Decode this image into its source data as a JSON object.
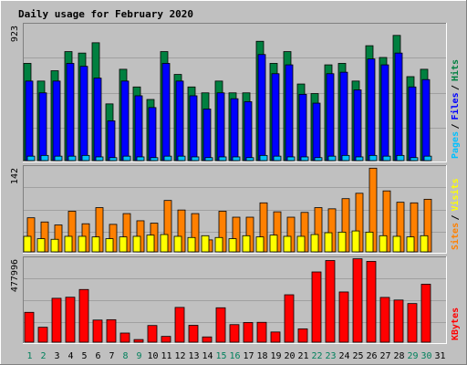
{
  "colors": {
    "frame": "#c0c0c0",
    "panel_bg": "#c0c0c0",
    "title": "#0000ff",
    "hits": "#008040",
    "files": "#0000ff",
    "pages": "#00c0ff",
    "visits": "#ffff00",
    "sites": "#ff8000",
    "kbytes": "#ff0000",
    "weekend_label": "#00805c",
    "weekday_label": "#000000"
  },
  "chart_data": [
    {
      "type": "bar",
      "title": "Daily usage for February 2020",
      "legend": [
        "Pages",
        "Files",
        "Hits"
      ],
      "legend_placement": "right-vertical",
      "ymax_label": "923",
      "ylim": [
        0,
        923
      ],
      "categories": [
        "1",
        "2",
        "3",
        "4",
        "5",
        "6",
        "7",
        "8",
        "9",
        "10",
        "11",
        "12",
        "13",
        "14",
        "15",
        "16",
        "17",
        "18",
        "19",
        "20",
        "21",
        "22",
        "23",
        "24",
        "25",
        "26",
        "27",
        "28",
        "29",
        "30",
        "31"
      ],
      "weekend_days": [
        "1",
        "2",
        "8",
        "9",
        "15",
        "16",
        "22",
        "23",
        "29",
        "30"
      ],
      "series": [
        {
          "name": "Hits",
          "values": [
            660,
            540,
            610,
            740,
            730,
            800,
            385,
            620,
            500,
            415,
            740,
            585,
            500,
            460,
            540,
            460,
            460,
            810,
            660,
            740,
            520,
            455,
            650,
            660,
            540,
            780,
            700,
            850,
            570,
            620,
            0
          ]
        },
        {
          "name": "Files",
          "values": [
            540,
            460,
            540,
            660,
            640,
            560,
            270,
            540,
            440,
            360,
            660,
            540,
            440,
            350,
            460,
            420,
            400,
            720,
            590,
            650,
            450,
            390,
            590,
            600,
            480,
            690,
            650,
            730,
            500,
            550,
            0
          ]
        },
        {
          "name": "Pages",
          "values": [
            30,
            35,
            30,
            30,
            35,
            25,
            20,
            30,
            25,
            20,
            30,
            30,
            25,
            20,
            25,
            25,
            20,
            35,
            30,
            25,
            25,
            20,
            30,
            35,
            25,
            35,
            30,
            35,
            20,
            30,
            0
          ]
        }
      ]
    },
    {
      "type": "bar",
      "legend": [
        "Sites",
        "Visits"
      ],
      "legend_placement": "right-vertical",
      "ymax_label": "142",
      "ylim": [
        0,
        142
      ],
      "categories": [
        "1",
        "2",
        "3",
        "4",
        "5",
        "6",
        "7",
        "8",
        "9",
        "10",
        "11",
        "12",
        "13",
        "14",
        "15",
        "16",
        "17",
        "18",
        "19",
        "20",
        "21",
        "22",
        "23",
        "24",
        "25",
        "26",
        "27",
        "28",
        "29",
        "30",
        "31"
      ],
      "series": [
        {
          "name": "Visits",
          "values": [
            26,
            22,
            21,
            26,
            26,
            25,
            22,
            25,
            26,
            28,
            29,
            26,
            24,
            27,
            24,
            22,
            27,
            25,
            28,
            26,
            26,
            29,
            32,
            33,
            35,
            33,
            27,
            26,
            25,
            27,
            0
          ]
        },
        {
          "name": "Sites",
          "values": [
            57,
            50,
            45,
            68,
            47,
            74,
            46,
            64,
            52,
            48,
            86,
            70,
            64,
            20,
            68,
            58,
            58,
            82,
            67,
            58,
            66,
            74,
            72,
            89,
            98,
            140,
            102,
            83,
            82,
            88,
            0
          ]
        }
      ]
    },
    {
      "type": "bar",
      "legend": [
        "KBytes"
      ],
      "legend_placement": "right-vertical",
      "ymax_label": "477996",
      "ylim": [
        0,
        477996
      ],
      "categories": [
        "1",
        "2",
        "3",
        "4",
        "5",
        "6",
        "7",
        "8",
        "9",
        "10",
        "11",
        "12",
        "13",
        "14",
        "15",
        "16",
        "17",
        "18",
        "19",
        "20",
        "21",
        "22",
        "23",
        "24",
        "25",
        "26",
        "27",
        "28",
        "29",
        "30",
        "31"
      ],
      "series": [
        {
          "name": "KBytes",
          "values": [
            170000,
            85000,
            250000,
            256000,
            300000,
            126000,
            128000,
            52000,
            15000,
            95000,
            33000,
            198000,
            96000,
            30000,
            196000,
            100000,
            112000,
            113000,
            58000,
            270000,
            76000,
            400000,
            465000,
            286000,
            475000,
            460000,
            255000,
            240000,
            220000,
            330000,
            0
          ]
        }
      ]
    }
  ]
}
